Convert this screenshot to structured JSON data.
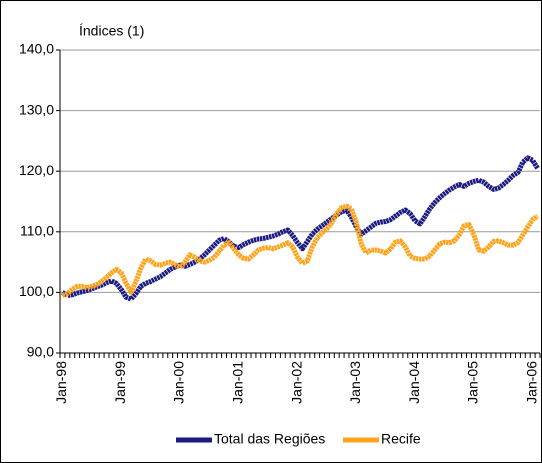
{
  "chart_data": {
    "type": "line",
    "title": "Índices (1)",
    "categories": [
      "Jan-98",
      null,
      null,
      null,
      null,
      null,
      null,
      null,
      null,
      null,
      null,
      null,
      "Jan-99",
      null,
      null,
      null,
      null,
      null,
      null,
      null,
      null,
      null,
      null,
      null,
      "Jan-00",
      null,
      null,
      null,
      null,
      null,
      null,
      null,
      null,
      null,
      null,
      null,
      "Jan-01",
      null,
      null,
      null,
      null,
      null,
      null,
      null,
      null,
      null,
      null,
      null,
      "Jan-02",
      null,
      null,
      null,
      null,
      null,
      null,
      null,
      null,
      null,
      null,
      null,
      "Jan-03",
      null,
      null,
      null,
      null,
      null,
      null,
      null,
      null,
      null,
      null,
      null,
      "Jan-04",
      null,
      null,
      null,
      null,
      null,
      null,
      null,
      null,
      null,
      null,
      null,
      "Jan-05",
      null,
      null,
      null,
      null,
      null,
      null,
      null,
      null,
      null,
      null,
      null,
      "Jan-06",
      null
    ],
    "series": [
      {
        "name": "Total das Regiões",
        "color": "#1b1a80",
        "values": [
          100.0,
          99.5,
          99.6,
          99.9,
          100.1,
          100.3,
          100.6,
          100.9,
          101.2,
          101.6,
          101.9,
          101.5,
          100.5,
          99.2,
          98.9,
          99.8,
          101.0,
          101.5,
          101.8,
          102.2,
          102.6,
          103.2,
          103.8,
          104.2,
          104.5,
          104.3,
          104.6,
          105.0,
          105.5,
          106.2,
          107.0,
          107.8,
          108.6,
          108.9,
          108.3,
          107.6,
          107.4,
          107.9,
          108.3,
          108.6,
          108.8,
          108.9,
          109.1,
          109.3,
          109.6,
          110.0,
          110.3,
          109.4,
          108.2,
          107.2,
          108.4,
          109.6,
          110.4,
          111.0,
          111.6,
          112.2,
          112.8,
          113.3,
          113.6,
          112.4,
          110.8,
          109.6,
          110.2,
          110.8,
          111.4,
          111.6,
          111.7,
          112.0,
          112.6,
          113.2,
          113.6,
          113.0,
          111.8,
          111.3,
          112.5,
          113.8,
          114.8,
          115.6,
          116.3,
          116.9,
          117.4,
          117.8,
          117.5,
          118.0,
          118.3,
          118.5,
          118.2,
          117.5,
          117.0,
          117.2,
          117.8,
          118.5,
          119.3,
          119.8,
          121.5,
          122.2,
          121.8,
          120.5
        ]
      },
      {
        "name": "Recife",
        "color": "#ffa31a",
        "values": [
          99.5,
          99.8,
          100.5,
          101.0,
          101.0,
          100.8,
          101.0,
          101.3,
          101.8,
          102.5,
          103.2,
          103.8,
          103.2,
          101.5,
          100.0,
          101.8,
          104.0,
          105.5,
          105.2,
          104.6,
          104.5,
          104.8,
          105.0,
          104.6,
          104.2,
          105.0,
          106.2,
          105.8,
          105.2,
          105.0,
          105.3,
          105.8,
          106.8,
          107.8,
          108.2,
          107.2,
          106.2,
          105.6,
          105.5,
          106.2,
          107.0,
          107.3,
          107.4,
          107.2,
          107.5,
          107.8,
          108.2,
          107.5,
          105.8,
          104.8,
          105.2,
          107.5,
          109.0,
          109.8,
          110.5,
          111.5,
          113.0,
          114.0,
          114.2,
          113.8,
          111.5,
          108.0,
          106.5,
          107.0,
          107.0,
          106.8,
          106.5,
          107.2,
          108.3,
          108.5,
          107.5,
          106.0,
          105.6,
          105.5,
          105.5,
          106.0,
          107.0,
          108.0,
          108.3,
          108.2,
          108.5,
          109.5,
          111.0,
          111.2,
          109.5,
          107.0,
          106.8,
          107.5,
          108.4,
          108.5,
          108.2,
          107.8,
          107.8,
          108.2,
          109.5,
          110.8,
          112.0,
          112.6
        ]
      }
    ],
    "ylim": [
      90,
      140
    ],
    "yticks": [
      {
        "value": 90,
        "label": "90,0"
      },
      {
        "value": 100,
        "label": "100,0"
      },
      {
        "value": 110,
        "label": "110,0"
      },
      {
        "value": 120,
        "label": "120,0"
      },
      {
        "value": 130,
        "label": "130,0"
      },
      {
        "value": 140,
        "label": "140,0"
      }
    ],
    "grid": true
  }
}
